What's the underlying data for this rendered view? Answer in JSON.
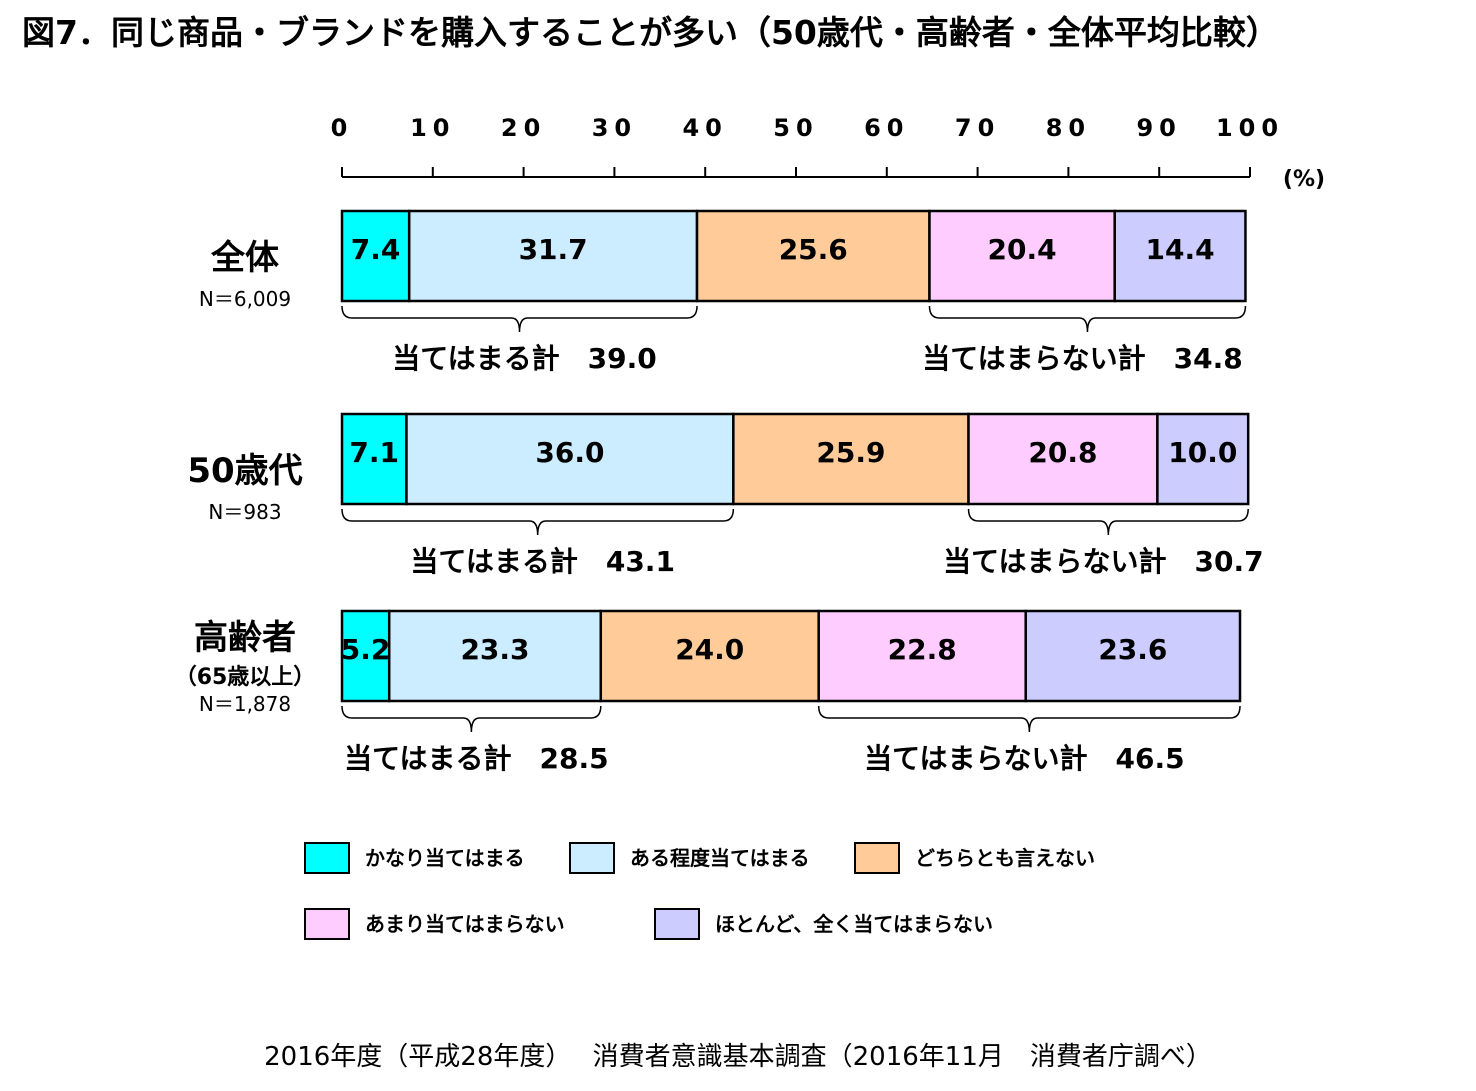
{
  "chart_data": {
    "type": "bar",
    "orientation": "horizontal",
    "stacked": true,
    "title": "図7．同じ商品・ブランドを購入することが多い（50歳代・高齢者・全体平均比較）",
    "xlim": [
      0,
      100
    ],
    "x_ticks": [
      "0",
      "10",
      "20",
      "30",
      "40",
      "50",
      "60",
      "70",
      "80",
      "90",
      "100"
    ],
    "unit_label": "(%)",
    "grid": false,
    "legend_position": "bottom",
    "categories": [
      {
        "label": "全体",
        "sublabel": "",
        "n": "N＝6,009"
      },
      {
        "label": "50歳代",
        "sublabel": "",
        "n": "N＝983"
      },
      {
        "label": "高齢者",
        "sublabel": "（65歳以上）",
        "n": "N＝1,878"
      }
    ],
    "series": [
      {
        "name": "かなり当てはまる",
        "color": "#00FFFF",
        "values": [
          7.4,
          7.1,
          5.2
        ]
      },
      {
        "name": "ある程度当てはまる",
        "color": "#CCECFF",
        "values": [
          31.7,
          36.0,
          23.3
        ]
      },
      {
        "name": "どちらとも言えない",
        "color": "#FFCC99",
        "values": [
          25.6,
          25.9,
          24.0
        ]
      },
      {
        "name": "あまり当てはまらない",
        "color": "#FFCCFF",
        "values": [
          20.4,
          20.8,
          22.8
        ]
      },
      {
        "name": "ほとんど、全く当てはまらない",
        "color": "#CCCCFF",
        "values": [
          14.4,
          10.0,
          23.6
        ]
      }
    ],
    "value_labels": [
      [
        "7.4",
        "31.7",
        "25.6",
        "20.4",
        "14.4"
      ],
      [
        "7.1",
        "36.0",
        "25.9",
        "20.8",
        "10.0"
      ],
      [
        "5.2",
        "23.3",
        "24.0",
        "22.8",
        "23.6"
      ]
    ],
    "totals": [
      {
        "agree": "当てはまる計　39.0",
        "disagree": "当てはまらない計　34.8"
      },
      {
        "agree": "当てはまる計　43.1",
        "disagree": "当てはまらない計　30.7"
      },
      {
        "agree": "当てはまる計　28.5",
        "disagree": "当てはまらない計　46.5"
      }
    ]
  },
  "source": "2016年度（平成28年度）　 消費者意識基本調査（2016年11月　消費者庁調べ）"
}
